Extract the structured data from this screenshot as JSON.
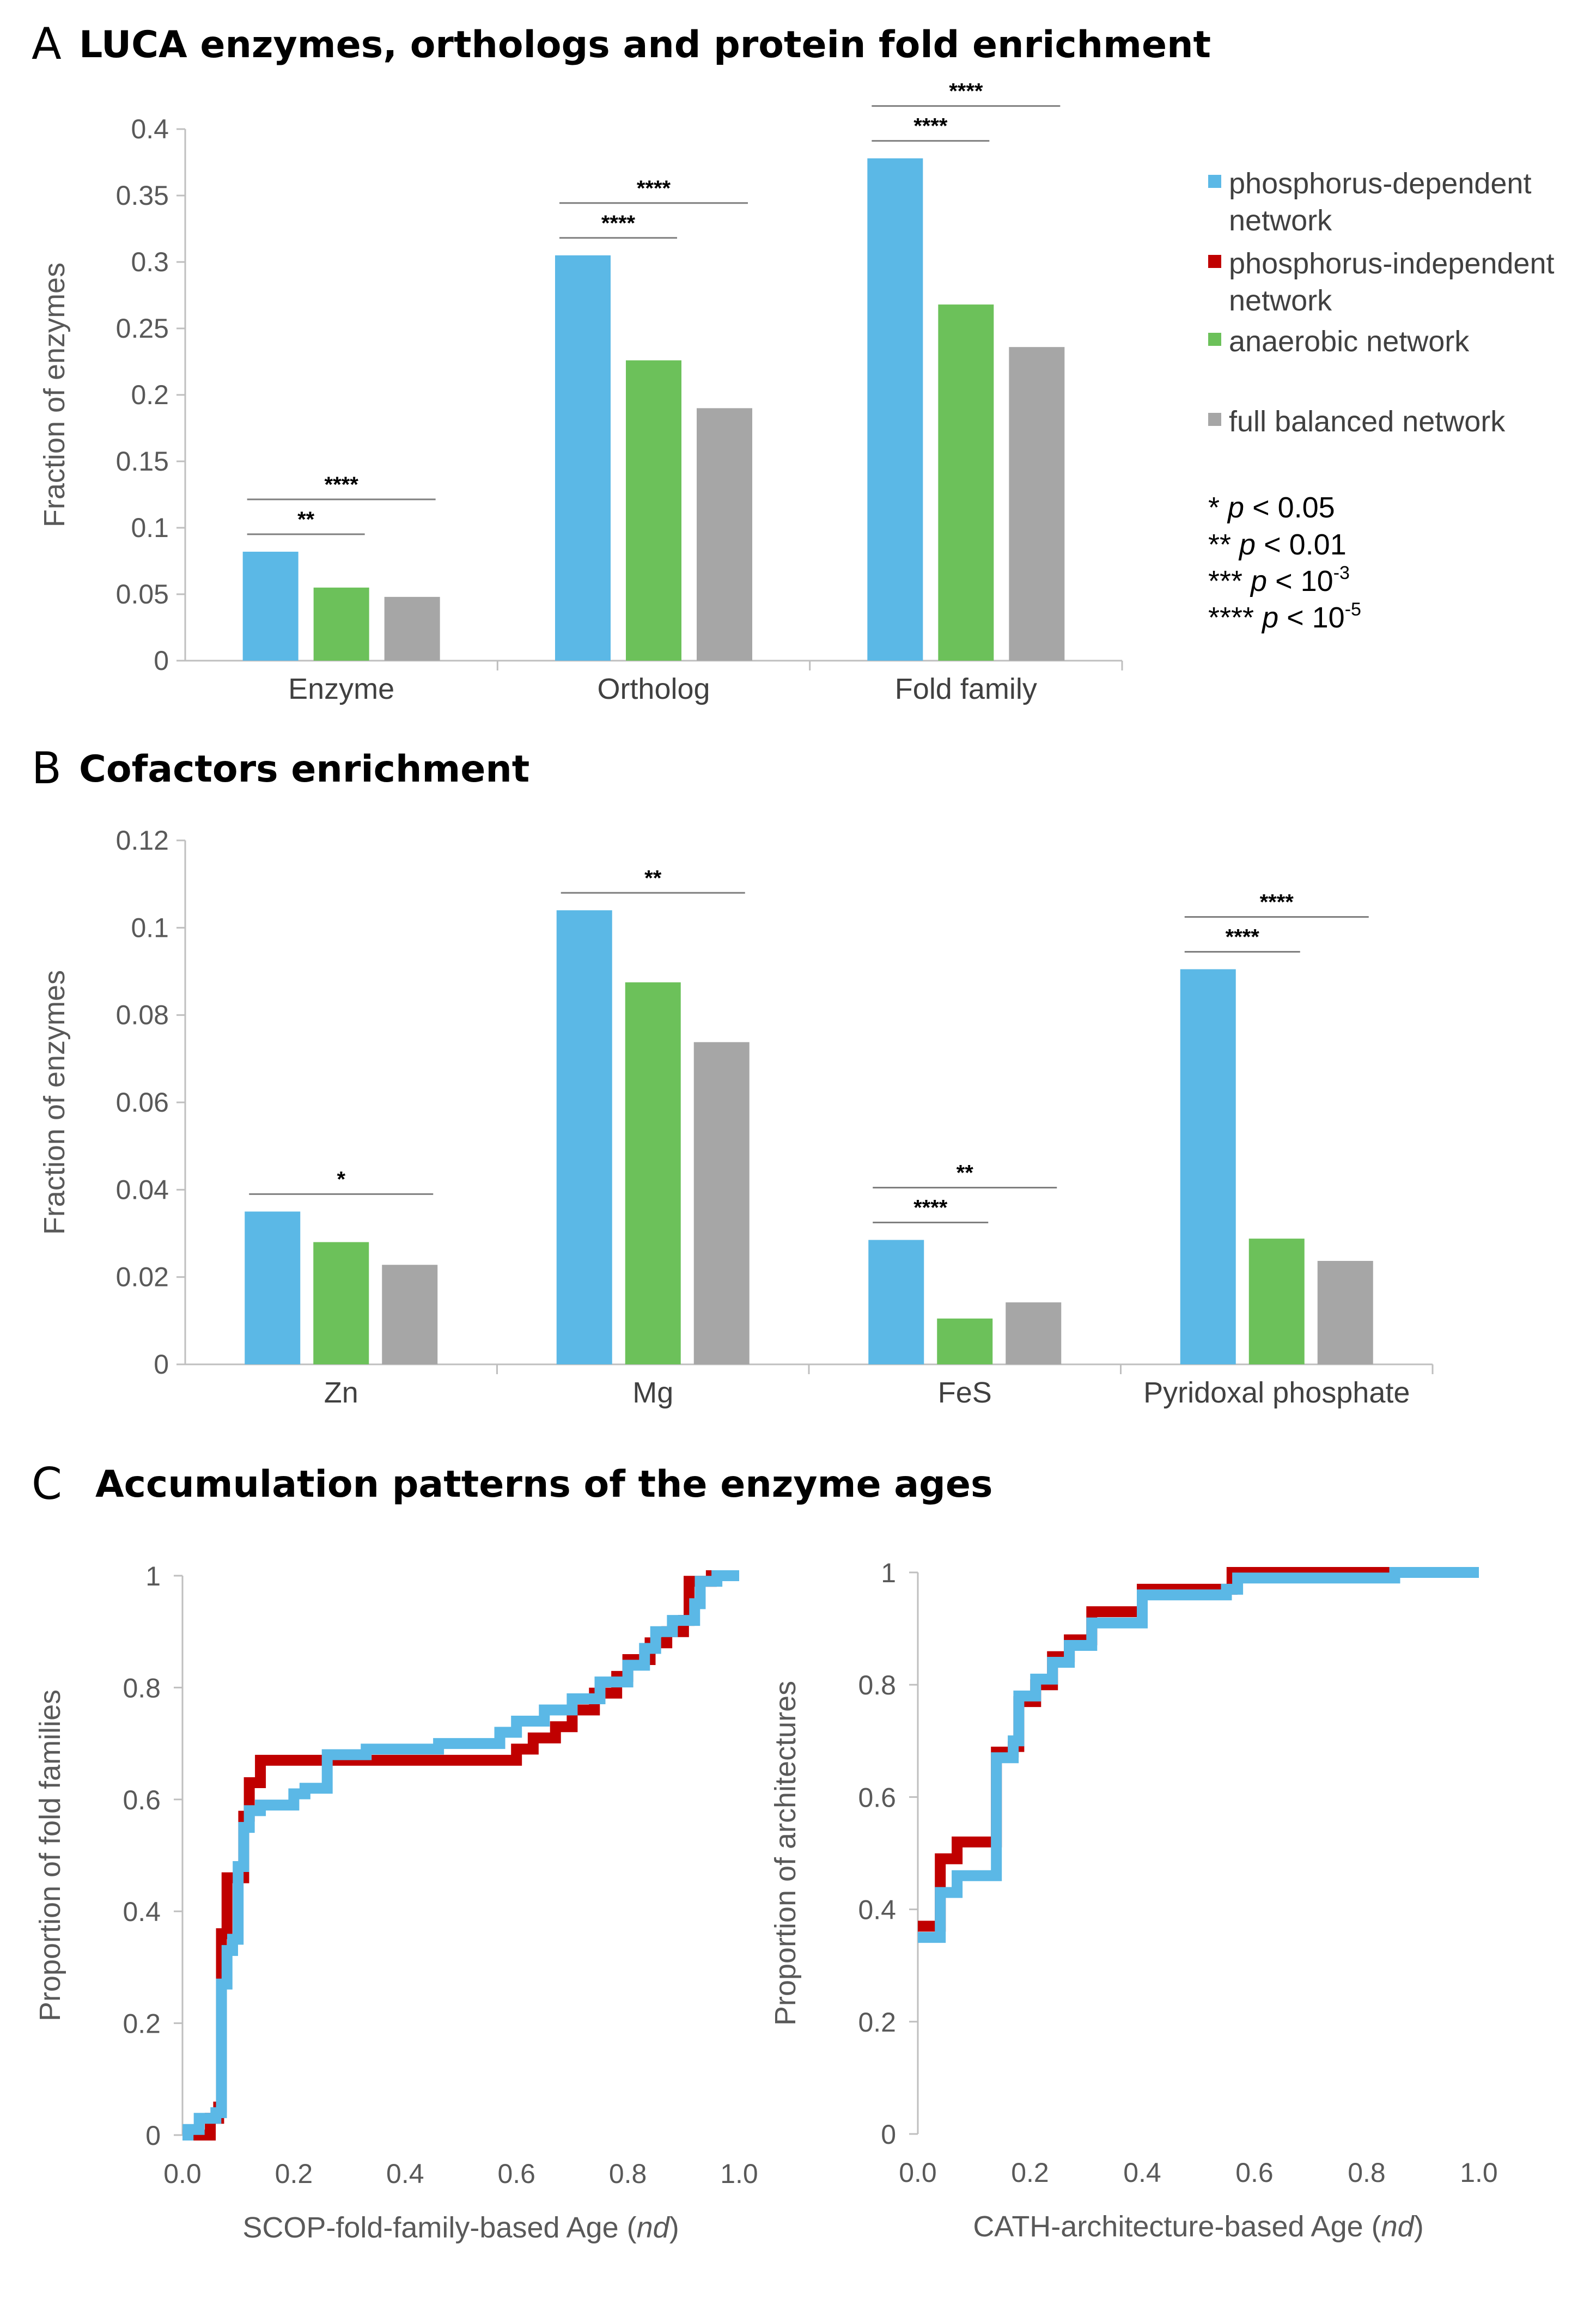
{
  "colors": {
    "phosphorus_dependent": "#5bb8e6",
    "phosphorus_independent": "#c00000",
    "anaerobic": "#6cc15a",
    "full_balanced": "#a6a6a6",
    "axis": "#bfbfbf",
    "sig_line": "#7f7f7f"
  },
  "panels": {
    "a": {
      "letter": "A",
      "title": "LUCA enzymes, orthologs and protein fold enrichment"
    },
    "b": {
      "letter": "B",
      "title": "Cofactors enrichment"
    },
    "c": {
      "letter": "C",
      "title": "Accumulation patterns of the enzyme ages"
    }
  },
  "legend": {
    "items": [
      {
        "lines": [
          "phosphorus-dependent",
          "network"
        ],
        "color": "#5bb8e6"
      },
      {
        "lines": [
          "phosphorus-independent",
          "network"
        ],
        "color": "#c00000"
      },
      {
        "lines": [
          "anaerobic network"
        ],
        "color": "#6cc15a"
      },
      {
        "lines": [
          "full balanced network"
        ],
        "color": "#a6a6a6"
      }
    ],
    "pvalues": [
      {
        "stars": "*",
        "p": "p",
        "rel": "< 0.05",
        "exp": ""
      },
      {
        "stars": "**",
        "p": "p",
        "rel": "< 0.01",
        "exp": ""
      },
      {
        "stars": "***",
        "p": "p",
        "rel": "< 10",
        "exp": "-3"
      },
      {
        "stars": "****",
        "p": "p",
        "rel": "< 10",
        "exp": "-5"
      }
    ]
  },
  "chart_data": [
    {
      "id": "A",
      "type": "bar",
      "title": "LUCA enzymes, orthologs and protein fold enrichment",
      "ylabel": "Fraction of enzymes",
      "ylim": [
        0,
        0.4
      ],
      "yticks": [
        "0",
        "0.05",
        "0.1",
        "0.15",
        "0.2",
        "0.25",
        "0.3",
        "0.35",
        "0.4"
      ],
      "categories": [
        "Enzyme",
        "Ortholog",
        "Fold family"
      ],
      "series": [
        {
          "name": "phosphorus-dependent network",
          "color": "#5bb8e6",
          "values": [
            0.082,
            0.305,
            0.378
          ]
        },
        {
          "name": "anaerobic network",
          "color": "#6cc15a",
          "values": [
            0.055,
            0.226,
            0.268
          ]
        },
        {
          "name": "full balanced network",
          "color": "#a6a6a6",
          "values": [
            0.048,
            0.19,
            0.236
          ]
        }
      ],
      "significance": [
        {
          "category": 0,
          "from": 0,
          "to": 1,
          "label": "**"
        },
        {
          "category": 0,
          "from": 0,
          "to": 2,
          "label": "****"
        },
        {
          "category": 1,
          "from": 0,
          "to": 1,
          "label": "****"
        },
        {
          "category": 1,
          "from": 0,
          "to": 2,
          "label": "****"
        },
        {
          "category": 2,
          "from": 0,
          "to": 1,
          "label": "****"
        },
        {
          "category": 2,
          "from": 0,
          "to": 2,
          "label": "****"
        }
      ]
    },
    {
      "id": "B",
      "type": "bar",
      "title": "Cofactors enrichment",
      "ylabel": "Fraction of enzymes",
      "ylim": [
        0,
        0.12
      ],
      "yticks": [
        "0",
        "0.02",
        "0.04",
        "0.06",
        "0.08",
        "0.1",
        "0.12"
      ],
      "categories": [
        "Zn",
        "Mg",
        "FeS",
        "Pyridoxal phosphate"
      ],
      "series": [
        {
          "name": "phosphorus-dependent network",
          "color": "#5bb8e6",
          "values": [
            0.035,
            0.104,
            0.0285,
            0.0905
          ]
        },
        {
          "name": "anaerobic network",
          "color": "#6cc15a",
          "values": [
            0.028,
            0.0875,
            0.0105,
            0.0288
          ]
        },
        {
          "name": "full balanced network",
          "color": "#a6a6a6",
          "values": [
            0.0228,
            0.0738,
            0.0142,
            0.0237
          ]
        }
      ],
      "significance": [
        {
          "category": 0,
          "from": 0,
          "to": 2,
          "label": "*"
        },
        {
          "category": 1,
          "from": 0,
          "to": 2,
          "label": "**"
        },
        {
          "category": 2,
          "from": 0,
          "to": 1,
          "label": "****"
        },
        {
          "category": 2,
          "from": 0,
          "to": 2,
          "label": "**"
        },
        {
          "category": 3,
          "from": 0,
          "to": 1,
          "label": "****"
        },
        {
          "category": 3,
          "from": 0,
          "to": 2,
          "label": "****"
        }
      ]
    },
    {
      "id": "C-left",
      "type": "line",
      "step": true,
      "xlabel": "SCOP-fold-family-based Age",
      "xlabel_italic": "nd",
      "ylabel": "Proportion of fold families",
      "xlim": [
        0,
        1
      ],
      "ylim": [
        0,
        1
      ],
      "xticks": [
        "0.0",
        "0.2",
        "0.4",
        "0.6",
        "0.8",
        "1.0"
      ],
      "yticks": [
        "0",
        "0.2",
        "0.4",
        "0.6",
        "0.8",
        "1"
      ],
      "series": [
        {
          "name": "phosphorus-independent network",
          "color": "#c00000",
          "points": [
            [
              0.0,
              0.0
            ],
            [
              0.03,
              0.0
            ],
            [
              0.05,
              0.03
            ],
            [
              0.065,
              0.05
            ],
            [
              0.07,
              0.36
            ],
            [
              0.08,
              0.46
            ],
            [
              0.09,
              0.46
            ],
            [
              0.11,
              0.57
            ],
            [
              0.12,
              0.63
            ],
            [
              0.14,
              0.67
            ],
            [
              0.25,
              0.67
            ],
            [
              0.3,
              0.67
            ],
            [
              0.6,
              0.69
            ],
            [
              0.63,
              0.71
            ],
            [
              0.67,
              0.73
            ],
            [
              0.7,
              0.76
            ],
            [
              0.74,
              0.79
            ],
            [
              0.78,
              0.82
            ],
            [
              0.8,
              0.85
            ],
            [
              0.84,
              0.88
            ],
            [
              0.87,
              0.9
            ],
            [
              0.9,
              0.92
            ],
            [
              0.91,
              0.99
            ],
            [
              0.95,
              1.0
            ],
            [
              1.0,
              1.0
            ]
          ]
        },
        {
          "name": "phosphorus-dependent network",
          "color": "#5bb8e6",
          "points": [
            [
              0.0,
              0.0
            ],
            [
              0.01,
              0.01
            ],
            [
              0.03,
              0.03
            ],
            [
              0.06,
              0.04
            ],
            [
              0.07,
              0.27
            ],
            [
              0.08,
              0.33
            ],
            [
              0.09,
              0.35
            ],
            [
              0.1,
              0.48
            ],
            [
              0.11,
              0.55
            ],
            [
              0.12,
              0.58
            ],
            [
              0.14,
              0.59
            ],
            [
              0.2,
              0.61
            ],
            [
              0.22,
              0.62
            ],
            [
              0.26,
              0.68
            ],
            [
              0.33,
              0.69
            ],
            [
              0.46,
              0.7
            ],
            [
              0.57,
              0.72
            ],
            [
              0.6,
              0.74
            ],
            [
              0.65,
              0.76
            ],
            [
              0.7,
              0.78
            ],
            [
              0.75,
              0.81
            ],
            [
              0.8,
              0.84
            ],
            [
              0.83,
              0.87
            ],
            [
              0.85,
              0.9
            ],
            [
              0.88,
              0.92
            ],
            [
              0.92,
              0.95
            ],
            [
              0.93,
              0.99
            ],
            [
              0.96,
              1.0
            ],
            [
              1.0,
              1.0
            ]
          ]
        }
      ]
    },
    {
      "id": "C-right",
      "type": "line",
      "step": true,
      "xlabel": "CATH-architecture-based Age",
      "xlabel_italic": "nd",
      "ylabel": "Proportion of architectures",
      "xlim": [
        0,
        1
      ],
      "ylim": [
        0,
        1
      ],
      "xticks": [
        "0.0",
        "0.2",
        "0.4",
        "0.6",
        "0.8",
        "1.0"
      ],
      "yticks": [
        "0",
        "0.2",
        "0.4",
        "0.6",
        "0.8",
        "1"
      ],
      "series": [
        {
          "name": "phosphorus-independent network",
          "color": "#c00000",
          "points": [
            [
              0.0,
              0.37
            ],
            [
              0.03,
              0.37
            ],
            [
              0.04,
              0.49
            ],
            [
              0.07,
              0.52
            ],
            [
              0.13,
              0.52
            ],
            [
              0.14,
              0.68
            ],
            [
              0.17,
              0.69
            ],
            [
              0.18,
              0.77
            ],
            [
              0.21,
              0.8
            ],
            [
              0.24,
              0.85
            ],
            [
              0.27,
              0.88
            ],
            [
              0.31,
              0.93
            ],
            [
              0.4,
              0.97
            ],
            [
              0.56,
              1.0
            ],
            [
              0.83,
              1.0
            ],
            [
              1.0,
              1.0
            ]
          ]
        },
        {
          "name": "phosphorus-dependent network",
          "color": "#5bb8e6",
          "points": [
            [
              0.0,
              0.35
            ],
            [
              0.03,
              0.35
            ],
            [
              0.04,
              0.43
            ],
            [
              0.07,
              0.46
            ],
            [
              0.13,
              0.46
            ],
            [
              0.14,
              0.67
            ],
            [
              0.17,
              0.7
            ],
            [
              0.18,
              0.78
            ],
            [
              0.21,
              0.81
            ],
            [
              0.24,
              0.84
            ],
            [
              0.27,
              0.87
            ],
            [
              0.31,
              0.91
            ],
            [
              0.4,
              0.96
            ],
            [
              0.55,
              0.97
            ],
            [
              0.57,
              0.99
            ],
            [
              0.85,
              1.0
            ],
            [
              1.0,
              1.0
            ]
          ]
        }
      ]
    }
  ]
}
